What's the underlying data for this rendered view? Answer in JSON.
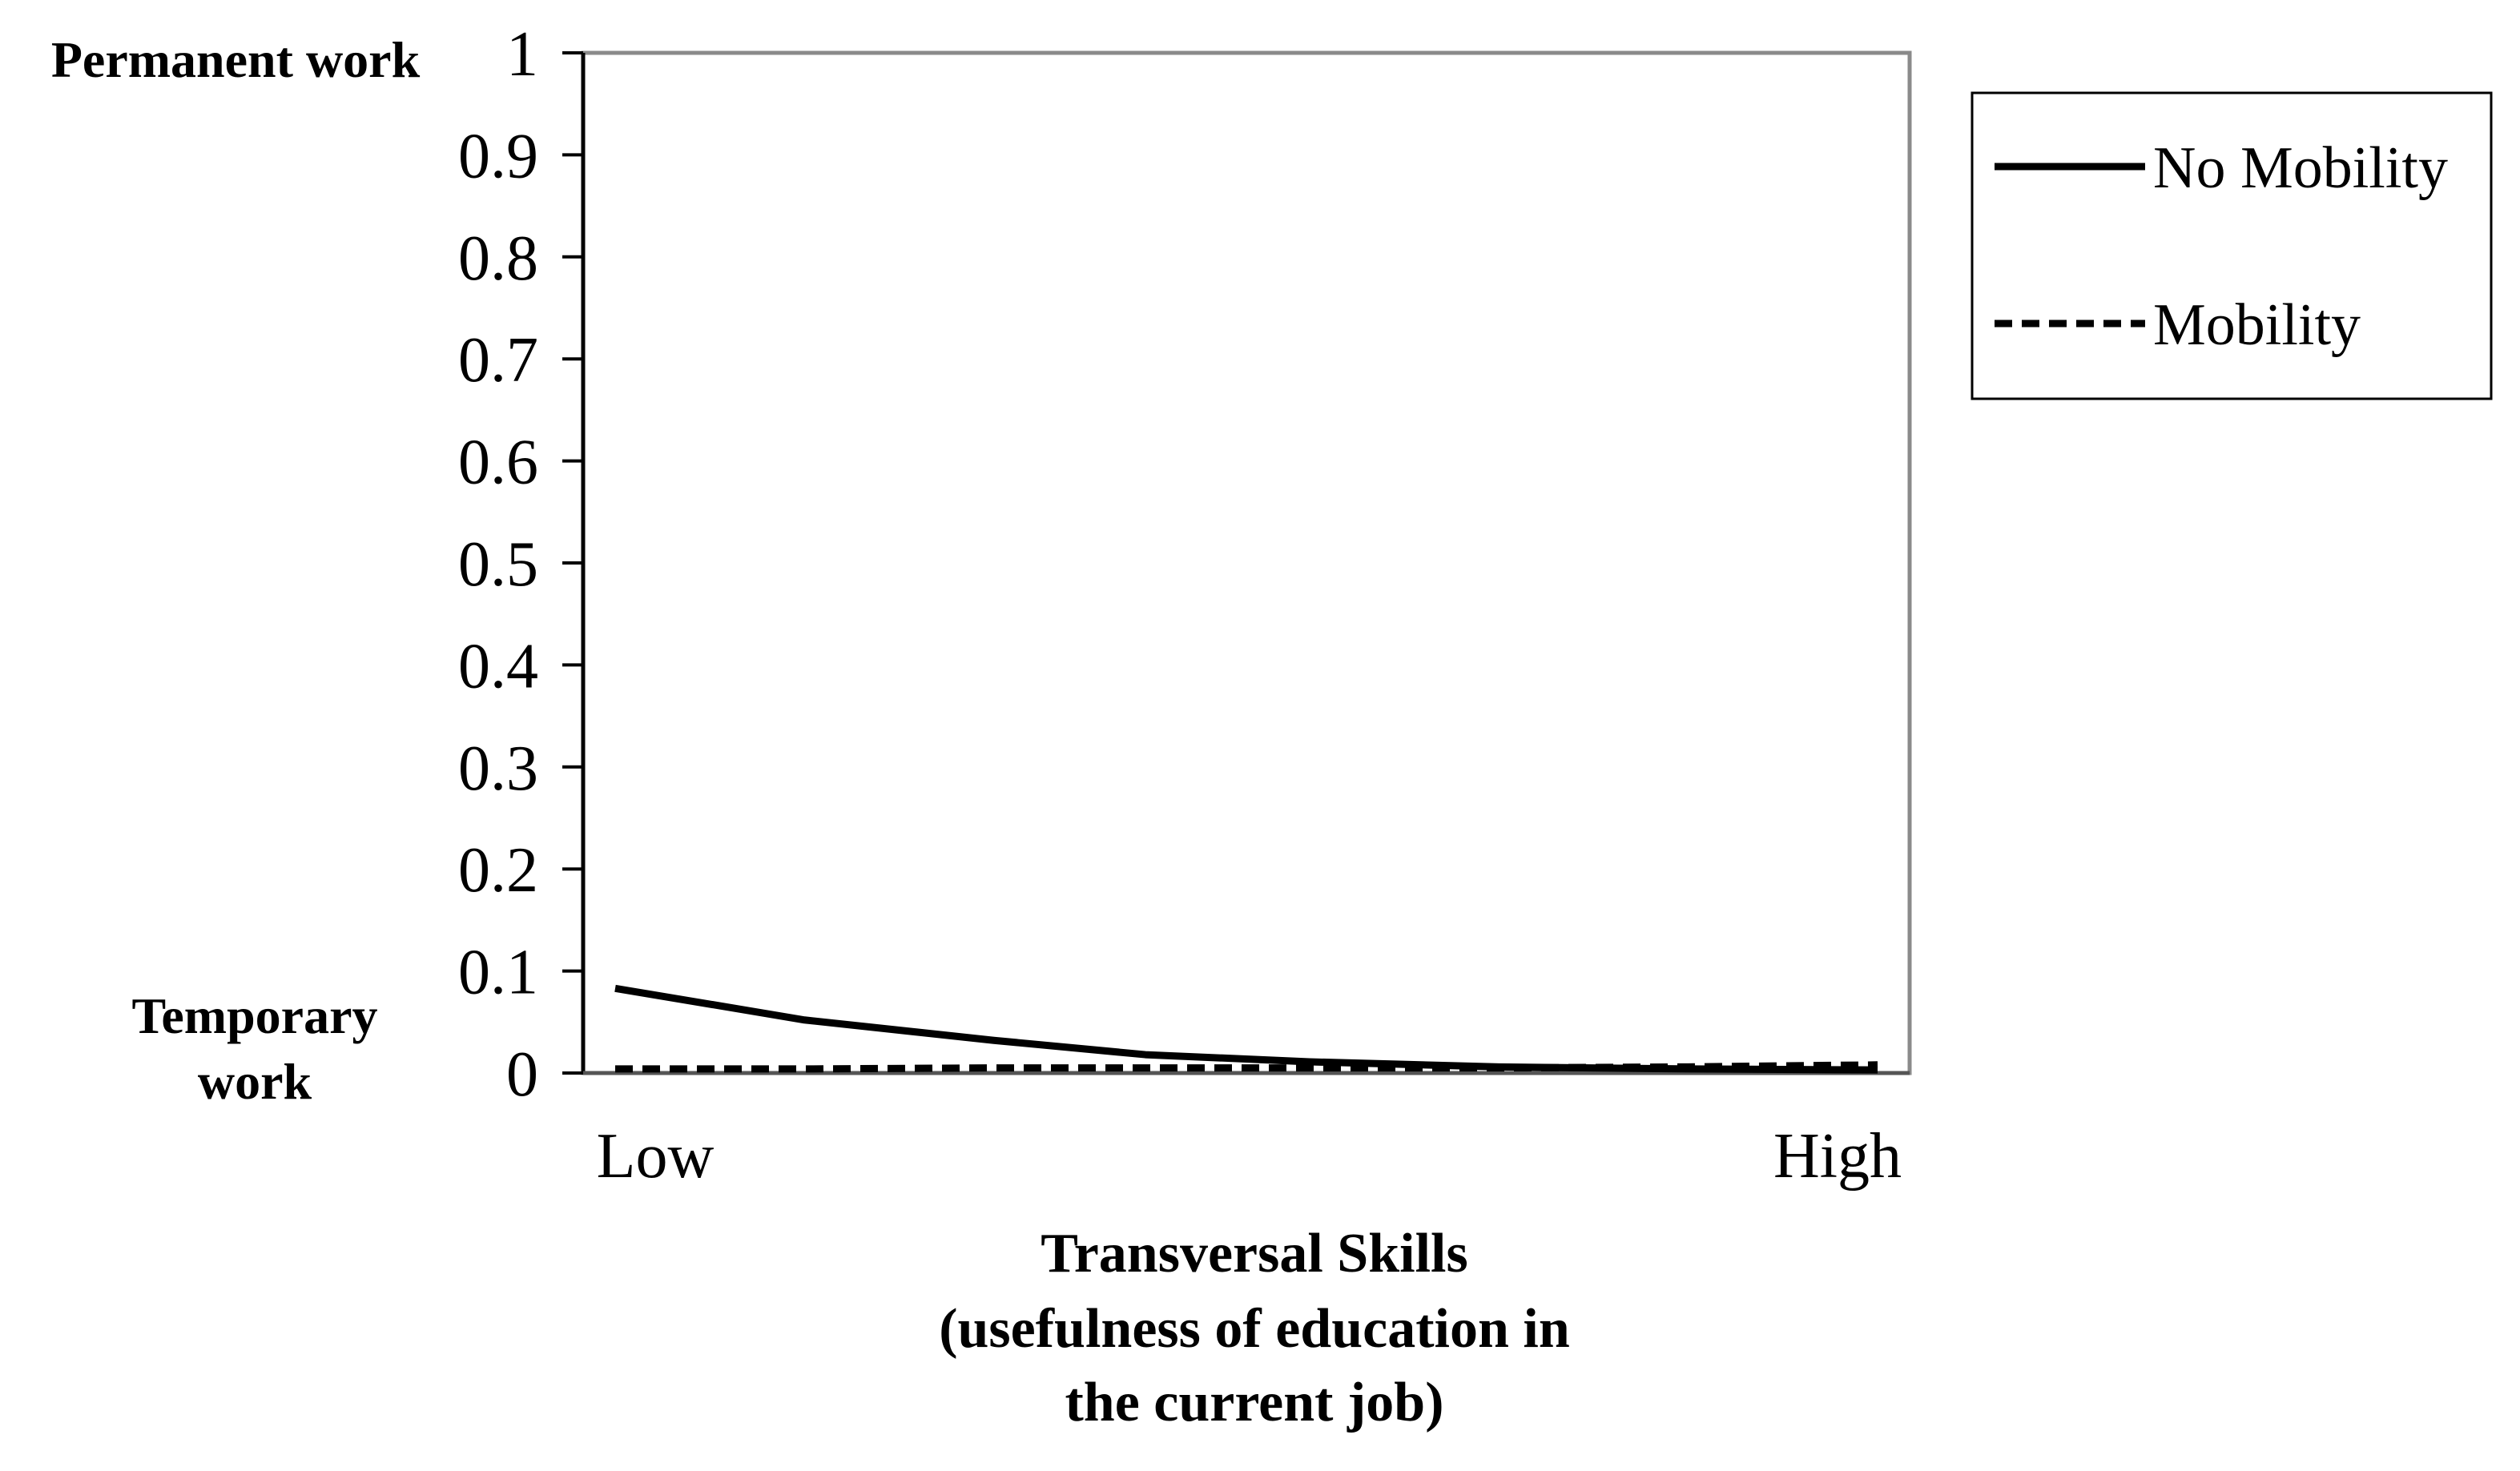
{
  "chart_data": {
    "type": "line",
    "x": [
      0,
      0.15,
      0.3,
      0.42,
      0.55,
      0.7,
      0.85,
      1.0
    ],
    "x_tick_labels": [
      "Low",
      "High"
    ],
    "series": [
      {
        "name": "No Mobility",
        "style": "solid",
        "values": [
          0.083,
          0.052,
          0.032,
          0.018,
          0.011,
          0.006,
          0.004,
          0.003
        ]
      },
      {
        "name": "Mobility",
        "style": "dashed",
        "values": [
          0.004,
          0.004,
          0.005,
          0.005,
          0.005,
          0.005,
          0.006,
          0.008
        ]
      }
    ],
    "ylim": [
      0,
      1
    ],
    "y_ticks": [
      "0",
      "0.1",
      "0.2",
      "0.3",
      "0.4",
      "0.5",
      "0.6",
      "0.7",
      "0.8",
      "0.9",
      "1"
    ],
    "y_top_label": "Permanent work",
    "y_bottom_label": [
      "Temporary",
      "work"
    ],
    "xlabel_lines": [
      "Transversal Skills",
      "(usefulness of education in",
      "the current job)"
    ],
    "grid": false,
    "legend_placement": "top-right, outside plot"
  }
}
